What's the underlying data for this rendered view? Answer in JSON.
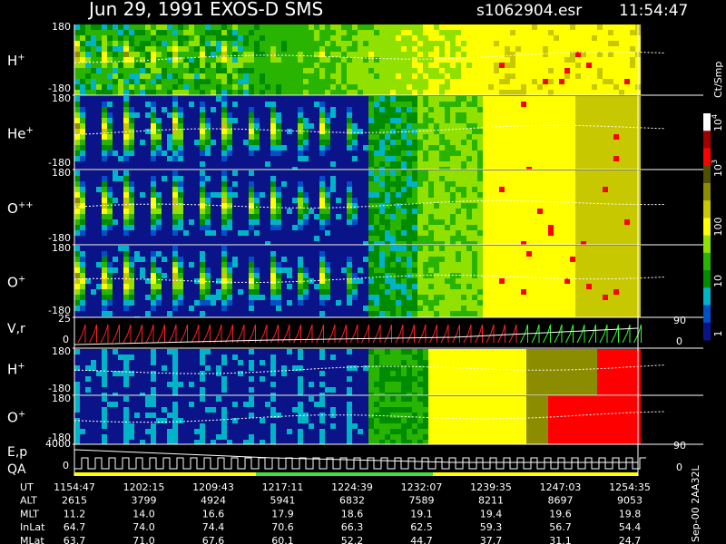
{
  "header": {
    "title": "Jun 29, 1991   EXOS-D SMS",
    "file": "s1062904.esr",
    "time": "11:54:47"
  },
  "panels": [
    {
      "label": "H",
      "charge": "+",
      "top": "180",
      "bottom": "-180"
    },
    {
      "label": "He",
      "charge": "+",
      "top": "180",
      "bottom": "-180"
    },
    {
      "label": "O",
      "charge": "++",
      "top": "180",
      "bottom": "-180"
    },
    {
      "label": "O",
      "charge": "+",
      "top": "180",
      "bottom": "-180"
    }
  ],
  "vr_panel": {
    "label": "V,r",
    "top": "25",
    "bottom": "0",
    "right_top": "90",
    "right_bottom": "0"
  },
  "lower_panels": [
    {
      "label": "H",
      "charge": "+",
      "top": "180",
      "bottom": "-180"
    },
    {
      "label": "O",
      "charge": "+",
      "top": "180",
      "bottom": "-180"
    }
  ],
  "ep_panel": {
    "label": "E,p",
    "label2": "QA",
    "top": "4000",
    "bottom": "0",
    "right_top": "90",
    "right_bottom": "0"
  },
  "colorbar": {
    "unit": "Ct/Smp",
    "labels": [
      {
        "base": "10",
        "exp": "4"
      },
      {
        "base": "10",
        "exp": "3"
      },
      "100",
      "10",
      "1"
    ]
  },
  "orbit_table": {
    "rows": [
      {
        "name": "UT",
        "values": [
          "1154:47",
          "1202:15",
          "1209:43",
          "1217:11",
          "1224:39",
          "1232:07",
          "1239:35",
          "1247:03",
          "1254:35"
        ]
      },
      {
        "name": "ALT",
        "values": [
          "2615",
          "3799",
          "4924",
          "5941",
          "6832",
          "7589",
          "8211",
          "8697",
          "9053"
        ]
      },
      {
        "name": "MLT",
        "values": [
          "11.2",
          "14.0",
          "16.6",
          "17.9",
          "18.6",
          "19.1",
          "19.4",
          "19.6",
          "19.8"
        ]
      },
      {
        "name": "InLat",
        "values": [
          "64.7",
          "74.0",
          "74.4",
          "70.6",
          "66.3",
          "62.5",
          "59.3",
          "56.7",
          "54.4"
        ]
      },
      {
        "name": "MLat",
        "values": [
          "63.7",
          "71.0",
          "67.6",
          "60.1",
          "52.2",
          "44.7",
          "37.7",
          "31.1",
          "24.7"
        ]
      }
    ]
  },
  "footer": "Sep-00 2AA32L"
}
